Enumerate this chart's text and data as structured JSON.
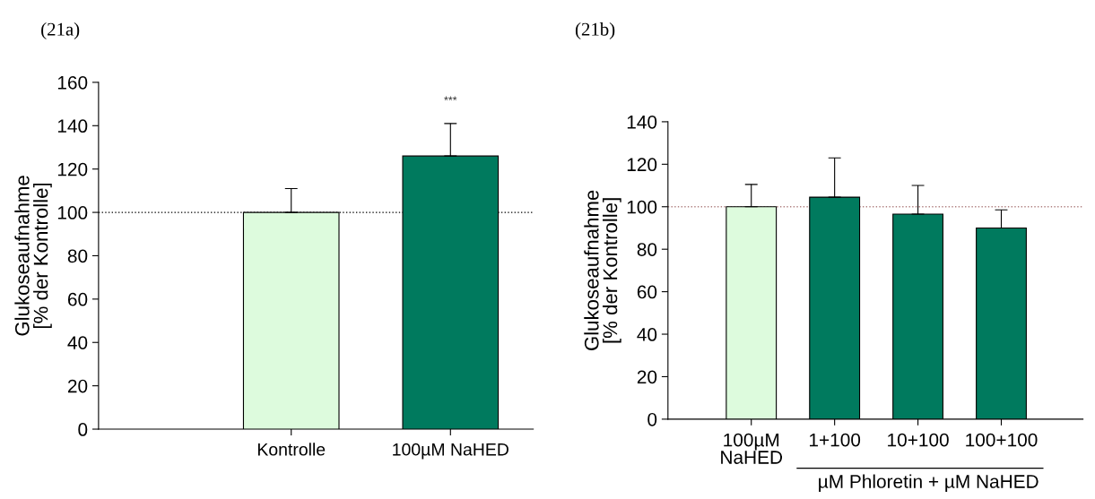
{
  "chart_data": [
    {
      "type": "bar",
      "title": "(21a)",
      "ylabel": "Glukoseaufnahme\n[% der Kontrolle]",
      "categories": [
        null,
        "Kontrolle",
        "100µM NaHED"
      ],
      "values": [
        null,
        100,
        126
      ],
      "errors": [
        null,
        11,
        15
      ],
      "colors": [
        "#ddfbdd",
        "#ddfbdd",
        "#007a5e"
      ],
      "ylim": [
        0,
        160
      ],
      "yticks": [
        0,
        20,
        40,
        60,
        80,
        100,
        120,
        140,
        160
      ],
      "ref_lines": [
        {
          "axis": "y",
          "value": 100,
          "color": "#000000",
          "line_style": "dotted"
        }
      ],
      "annotations": [
        "***"
      ]
    },
    {
      "type": "bar",
      "title": "(21b)",
      "ylabel": "Glukoseaufnahme\n[% der Kontrolle]",
      "categories": [
        "100µM\nNaHED",
        "1+100",
        "10+100",
        "100+100"
      ],
      "values": [
        100,
        104.5,
        96.5,
        90
      ],
      "errors": [
        10.5,
        18.5,
        13.5,
        8.5
      ],
      "colors": [
        "#ddfbdd",
        "#007a5e",
        "#007a5e",
        "#007a5e"
      ],
      "ylim": [
        0,
        140
      ],
      "yticks": [
        0,
        20,
        40,
        60,
        80,
        100,
        120,
        140
      ],
      "ref_lines": [
        {
          "axis": "y",
          "value": 100,
          "color": "#b08080",
          "line_style": "dotted"
        }
      ],
      "annotations": [
        "µM Phloretin + µM NaHED"
      ]
    }
  ]
}
